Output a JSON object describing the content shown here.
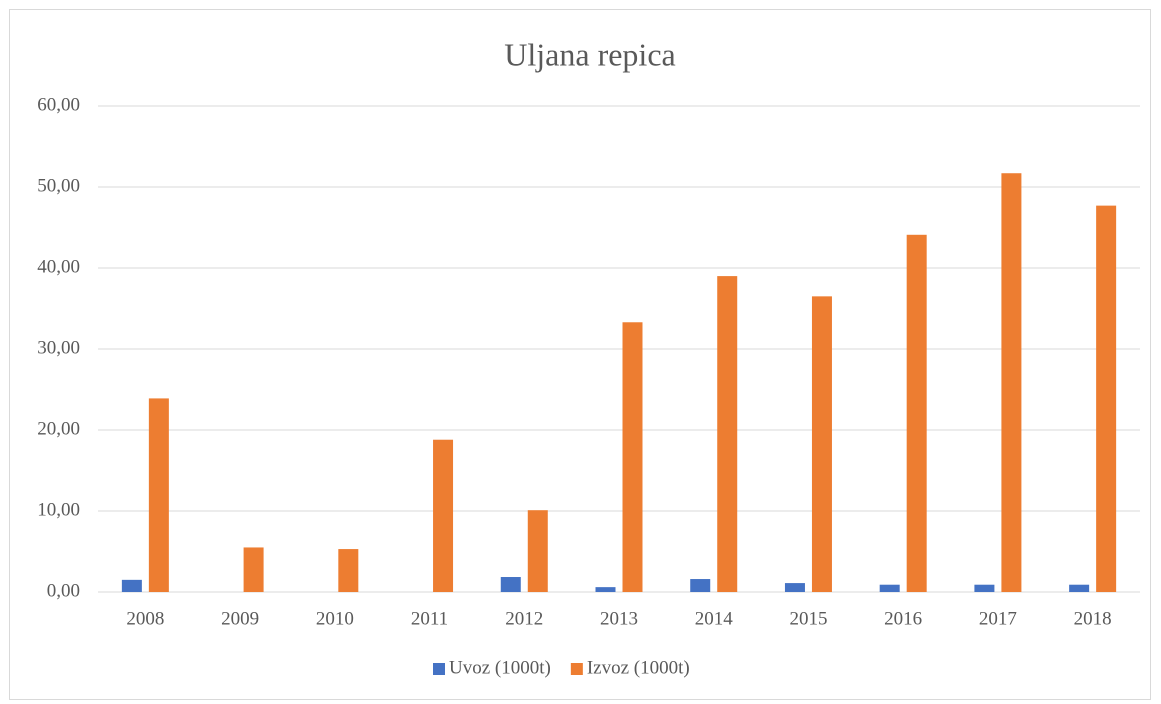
{
  "chart_data": {
    "type": "bar",
    "title": "Uljana repica",
    "categories": [
      "2008",
      "2009",
      "2010",
      "2011",
      "2012",
      "2013",
      "2014",
      "2015",
      "2016",
      "2017",
      "2018"
    ],
    "series": [
      {
        "name": "Uvoz (1000t)",
        "color": "#4472c4",
        "values": [
          1.5,
          0,
          0,
          0,
          1.85,
          0.6,
          1.6,
          1.1,
          0.9,
          0.9,
          0.9
        ]
      },
      {
        "name": "Izvoz (1000t)",
        "color": "#ed7d31",
        "values": [
          23.9,
          5.5,
          5.3,
          18.8,
          10.1,
          33.3,
          39.0,
          36.5,
          44.1,
          51.7,
          47.7
        ]
      }
    ],
    "ylim": [
      0,
      60
    ],
    "yticks": [
      {
        "value": 0,
        "label": "0,00"
      },
      {
        "value": 10,
        "label": "10,00"
      },
      {
        "value": 20,
        "label": "20,00"
      },
      {
        "value": 30,
        "label": "30,00"
      },
      {
        "value": 40,
        "label": "40,00"
      },
      {
        "value": 50,
        "label": "50,00"
      },
      {
        "value": 60,
        "label": "60,00"
      }
    ],
    "grid": true,
    "legend": "bottom"
  }
}
